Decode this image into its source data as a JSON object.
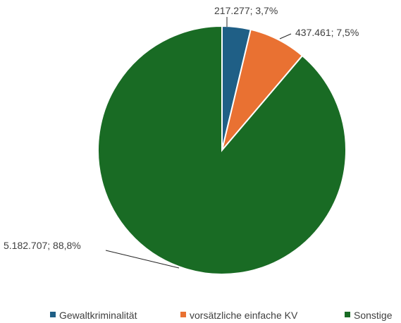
{
  "chart_data": {
    "type": "pie",
    "title": "",
    "slices": [
      {
        "name": "Gewaltkriminalität",
        "value": 217277,
        "label": "217.277; 3,7%",
        "color": "#1F5F86"
      },
      {
        "name": "vorsätzliche einfache KV",
        "value": 437461,
        "label": "437.461; 7,5%",
        "color": "#E97132"
      },
      {
        "name": "Sonstige",
        "value": 5182707,
        "label": "5.182.707; 88,8%",
        "color": "#196B24"
      }
    ],
    "legend_position": "bottom",
    "start_angle": "12 o'clock",
    "direction": "clockwise"
  }
}
